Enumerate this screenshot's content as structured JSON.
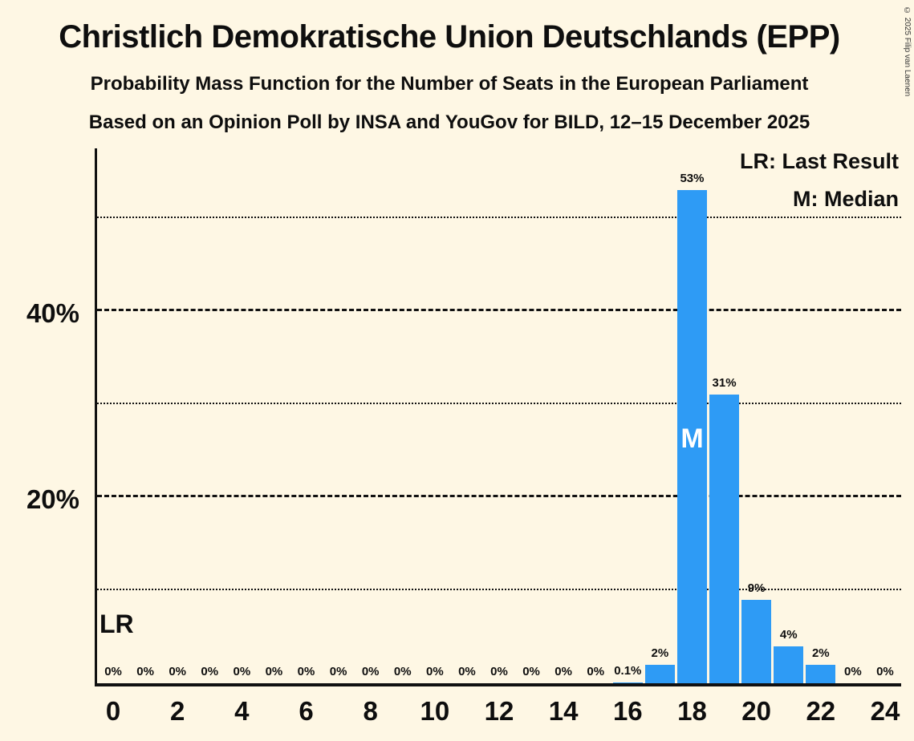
{
  "title": "Christlich Demokratische Union Deutschlands (EPP)",
  "subtitle1": "Probability Mass Function for the Number of Seats in the European Parliament",
  "subtitle2": "Based on an Opinion Poll by INSA and YouGov for BILD, 12–15 December 2025",
  "copyright": "© 2025 Filip van Laenen",
  "legend": {
    "lr": "LR: Last Result",
    "m": "M: Median"
  },
  "lr_label": "LR",
  "median_label": "M",
  "colors": {
    "bar": "#2E9BF5",
    "background": "#FEF7E4",
    "text": "#0E0E0E"
  },
  "chart_data": {
    "type": "bar",
    "title": "Christlich Demokratische Union Deutschlands (EPP)",
    "x": [
      0,
      1,
      2,
      3,
      4,
      5,
      6,
      7,
      8,
      9,
      10,
      11,
      12,
      13,
      14,
      15,
      16,
      17,
      18,
      19,
      20,
      21,
      22,
      23,
      24
    ],
    "values": [
      0,
      0,
      0,
      0,
      0,
      0,
      0,
      0,
      0,
      0,
      0,
      0,
      0,
      0,
      0,
      0,
      0.1,
      2,
      53,
      31,
      9,
      4,
      2,
      0,
      0
    ],
    "labels": [
      "0%",
      "0%",
      "0%",
      "0%",
      "0%",
      "0%",
      "0%",
      "0%",
      "0%",
      "0%",
      "0%",
      "0%",
      "0%",
      "0%",
      "0%",
      "0%",
      "0.1%",
      "2%",
      "53%",
      "31%",
      "9%",
      "4%",
      "2%",
      "0%",
      "0%"
    ],
    "median_seat": 18,
    "last_result_marker": "LR",
    "xticks": [
      0,
      2,
      4,
      6,
      8,
      10,
      12,
      14,
      16,
      18,
      20,
      22,
      24
    ],
    "yticks": [
      {
        "value": 20,
        "label": "20%"
      },
      {
        "value": 40,
        "label": "40%"
      }
    ],
    "gridlines": [
      {
        "value": 10,
        "style": "dotted"
      },
      {
        "value": 20,
        "style": "dashed"
      },
      {
        "value": 30,
        "style": "dotted"
      },
      {
        "value": 40,
        "style": "dashed"
      },
      {
        "value": 50,
        "style": "dotted"
      }
    ],
    "ylim": [
      0,
      57.5
    ],
    "grid": "horizontal",
    "legend_position": "top-right"
  }
}
